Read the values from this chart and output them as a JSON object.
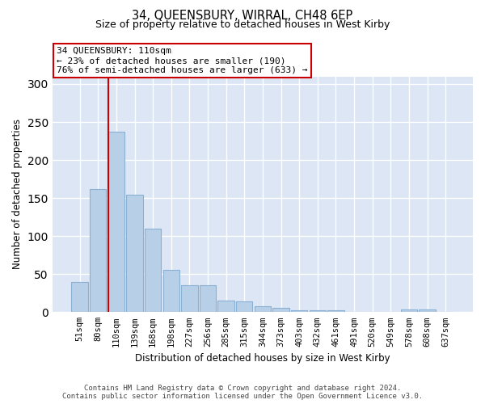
{
  "title": "34, QUEENSBURY, WIRRAL, CH48 6EP",
  "subtitle": "Size of property relative to detached houses in West Kirby",
  "xlabel": "Distribution of detached houses by size in West Kirby",
  "ylabel": "Number of detached properties",
  "categories": [
    "51sqm",
    "80sqm",
    "110sqm",
    "139sqm",
    "168sqm",
    "198sqm",
    "227sqm",
    "256sqm",
    "285sqm",
    "315sqm",
    "344sqm",
    "373sqm",
    "403sqm",
    "432sqm",
    "461sqm",
    "491sqm",
    "520sqm",
    "549sqm",
    "578sqm",
    "608sqm",
    "637sqm"
  ],
  "values": [
    40,
    162,
    237,
    154,
    110,
    56,
    35,
    35,
    15,
    14,
    8,
    6,
    2,
    2,
    2,
    0,
    0,
    0,
    3,
    3,
    0
  ],
  "bar_color": "#b8cfe8",
  "bar_edge_color": "#8ab0d4",
  "highlight_index": 2,
  "highlight_line_color": "#cc0000",
  "annotation_text": "34 QUEENSBURY: 110sqm\n← 23% of detached houses are smaller (190)\n76% of semi-detached houses are larger (633) →",
  "annotation_box_color": "#ffffff",
  "annotation_box_edge": "#cc0000",
  "ylim": [
    0,
    310
  ],
  "yticks": [
    0,
    50,
    100,
    150,
    200,
    250,
    300
  ],
  "background_color": "#dce6f5",
  "grid_color": "#ffffff",
  "footer_line1": "Contains HM Land Registry data © Crown copyright and database right 2024.",
  "footer_line2": "Contains public sector information licensed under the Open Government Licence v3.0."
}
